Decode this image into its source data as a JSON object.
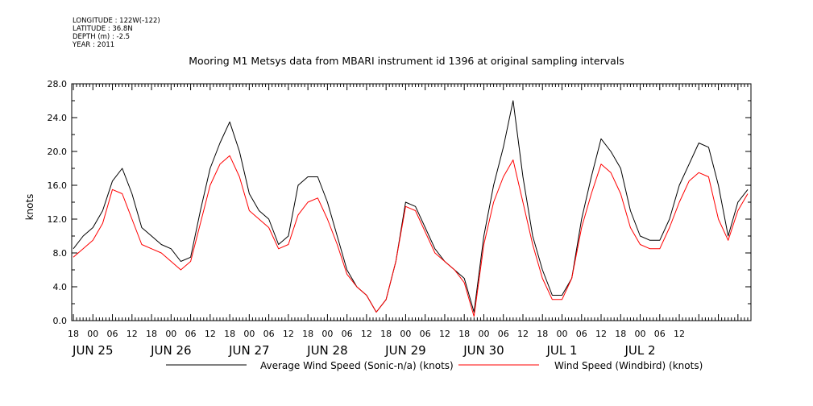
{
  "meta": {
    "longitude": "LONGITUDE : 122W(-122)",
    "latitude": "LATITUDE : 36.8N",
    "depth": "DEPTH (m) : -2.5",
    "year": "YEAR : 2011"
  },
  "chart_data": {
    "type": "line",
    "title": "Mooring M1 Metsys data from MBARI instrument id 1396 at original sampling intervals",
    "ylabel": "knots",
    "xlabel": "",
    "ylim": [
      0,
      28
    ],
    "x_range_hours": [
      -6.5,
      202
    ],
    "y_ticks": [
      "0.0",
      "4.0",
      "8.0",
      "12.0",
      "16.0",
      "20.0",
      "24.0",
      "28.0"
    ],
    "hour_ticks": [
      "18",
      "00",
      "06",
      "12",
      "18",
      "00",
      "06",
      "12",
      "18",
      "00",
      "06",
      "12",
      "18",
      "00",
      "06",
      "12",
      "18",
      "00",
      "06",
      "12",
      "18",
      "00",
      "06",
      "12",
      "18",
      "00",
      "06",
      "12",
      "18",
      "00",
      "06",
      "12"
    ],
    "date_labels": [
      "JUN 25",
      "JUN 26",
      "JUN 27",
      "JUN 28",
      "JUN 29",
      "JUN 30",
      "JUL  1",
      "JUL  2"
    ],
    "legend_position": "bottom",
    "series": [
      {
        "name": "Average Wind Speed (Sonic-n/a) (knots)",
        "color": "#000000",
        "x": [
          -6,
          -3,
          0,
          3,
          6,
          9,
          12,
          15,
          18,
          21,
          24,
          27,
          30,
          33,
          36,
          39,
          42,
          45,
          48,
          51,
          54,
          57,
          60,
          63,
          66,
          69,
          72,
          75,
          78,
          81,
          84,
          87,
          90,
          93,
          96,
          99,
          102,
          105,
          108,
          111,
          114,
          117,
          120,
          123,
          126,
          129,
          132,
          135,
          138,
          141,
          144,
          147,
          150,
          153,
          156,
          159,
          162,
          165,
          168,
          171,
          174,
          177,
          180,
          183,
          186,
          189,
          192,
          195,
          198,
          201
        ],
        "y": [
          8.5,
          10,
          11,
          13,
          16.5,
          18,
          15,
          11,
          10,
          9,
          8.5,
          7,
          7.5,
          13,
          18,
          21,
          23.5,
          20,
          15,
          13,
          12,
          9,
          10,
          16,
          17,
          17,
          14,
          10,
          6,
          4,
          3,
          1,
          2.5,
          7,
          14,
          13.5,
          11,
          8.5,
          7,
          6,
          5,
          1,
          10,
          16,
          20.5,
          26,
          17,
          10,
          6,
          3,
          3,
          5,
          12,
          17,
          21.5,
          20,
          18,
          13,
          10,
          9.5,
          9.5,
          12,
          16,
          18.5,
          21,
          20.5,
          16,
          10,
          14,
          15.5
        ]
      },
      {
        "name": "Wind Speed (Windbird) (knots)",
        "color": "#ff0000",
        "x": [
          -6,
          -3,
          0,
          3,
          6,
          9,
          12,
          15,
          18,
          21,
          24,
          27,
          30,
          33,
          36,
          39,
          42,
          45,
          48,
          51,
          54,
          57,
          60,
          63,
          66,
          69,
          72,
          75,
          78,
          81,
          84,
          87,
          90,
          93,
          96,
          99,
          102,
          105,
          108,
          111,
          114,
          117,
          120,
          123,
          126,
          129,
          132,
          135,
          138,
          141,
          144,
          147,
          150,
          153,
          156,
          159,
          162,
          165,
          168,
          171,
          174,
          177,
          180,
          183,
          186,
          189,
          192,
          195,
          198,
          201
        ],
        "y": [
          7.5,
          8.5,
          9.5,
          11.5,
          15.5,
          15,
          12,
          9,
          8.5,
          8,
          7,
          6,
          7,
          11.5,
          16,
          18.5,
          19.5,
          17,
          13,
          12,
          11,
          8.5,
          9,
          12.5,
          14,
          14.5,
          12,
          9,
          5.5,
          4,
          3,
          1,
          2.5,
          7,
          13.5,
          13,
          10.5,
          8,
          7,
          6,
          4.5,
          0.5,
          9,
          14,
          17,
          19,
          14,
          9,
          5,
          2.5,
          2.5,
          5,
          11,
          15,
          18.5,
          17.5,
          15,
          11,
          9,
          8.5,
          8.5,
          11,
          14,
          16.5,
          17.5,
          17,
          12,
          9.5,
          13,
          15
        ]
      }
    ]
  }
}
